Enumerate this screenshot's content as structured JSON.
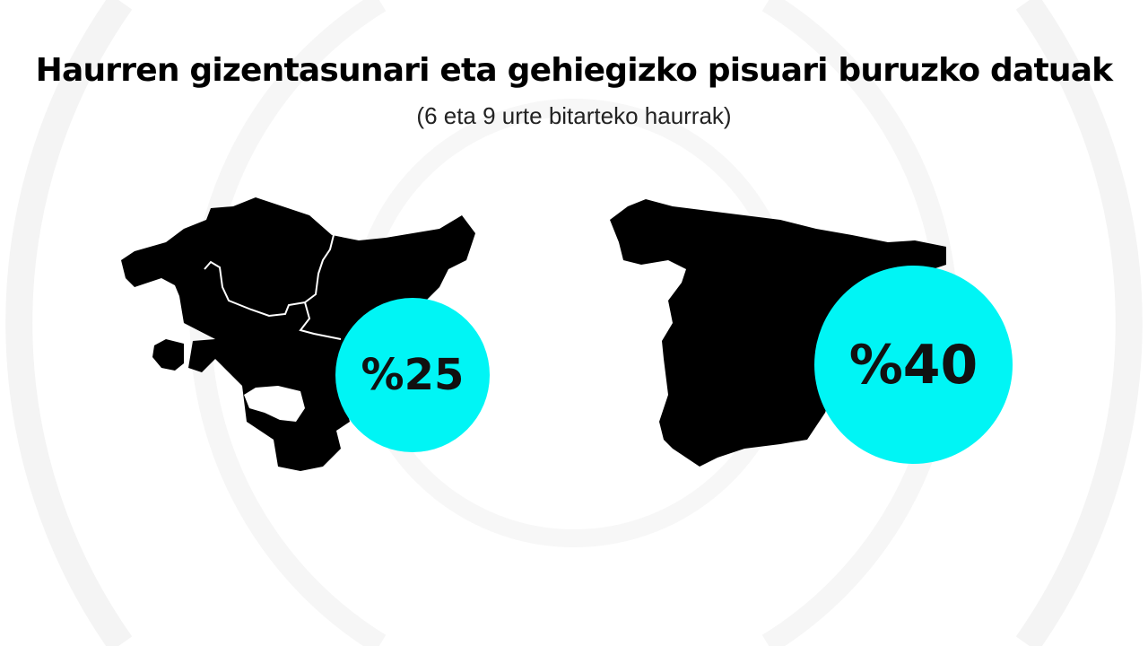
{
  "title": "Haurren gizentasunari eta gehiegizko pisuari buruzko datuak",
  "subtitle": "(6 eta 9 urte bitarteko haurrak)",
  "colors": {
    "map": "#000000",
    "badge": "#00F5F5",
    "background": "#FFFFFF"
  },
  "regions": [
    {
      "map": "basque-country-map",
      "value": "%25"
    },
    {
      "map": "spain-map",
      "value": "%40"
    }
  ]
}
